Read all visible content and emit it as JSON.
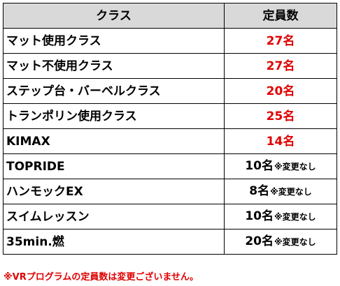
{
  "table": {
    "header_class": "クラス",
    "header_count": "定員数",
    "rows": [
      {
        "name": "マット使用クラス",
        "count": "27名",
        "note": "",
        "highlight": "#e00000"
      },
      {
        "name": "マット不使用クラス",
        "count": "27名",
        "note": "",
        "highlight": "#e00000"
      },
      {
        "name": "ステップ台・バーベルクラス",
        "count": "20名",
        "note": "",
        "highlight": "#e00000"
      },
      {
        "name": "トランポリン使用クラス",
        "count": "25名",
        "note": "",
        "highlight": "#e00000"
      },
      {
        "name": "KIMAX",
        "count": "14名",
        "note": "",
        "highlight": "#e00000"
      },
      {
        "name": "TOPRIDE",
        "count": "10名",
        "note": "※変更なし",
        "highlight": "#000000"
      },
      {
        "name": "ハンモックEX",
        "count": "8名",
        "note": "※変更なし",
        "highlight": "#000000"
      },
      {
        "name": "スイムレッスン",
        "count": "10名",
        "note": "※変更なし",
        "highlight": "#000000"
      },
      {
        "name": "35min.燃",
        "count": "20名",
        "note": "※変更なし",
        "highlight": "#000000"
      }
    ]
  },
  "footnote": "※VRプログラムの定員数は変更ございません。",
  "colors": {
    "header_bg": "#d9d9d9",
    "accent_red": "#e00000",
    "border": "#000000"
  }
}
